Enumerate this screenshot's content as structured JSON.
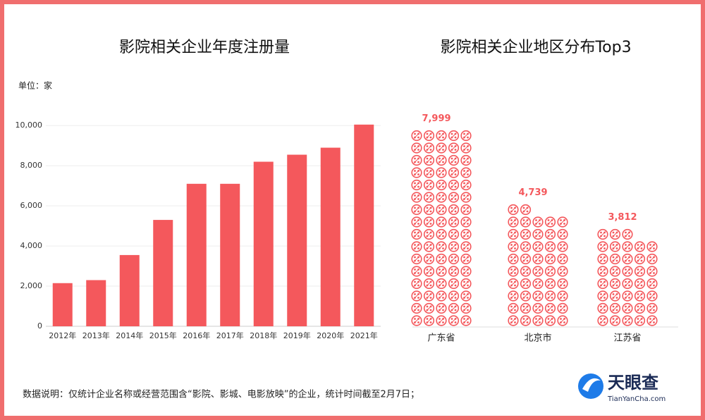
{
  "unit_label": "单位：家",
  "note": "数据说明：仅统计企业名称或经营范围含“影院、影城、电影放映”的企业，统计时间截至2月7日；",
  "logo": {
    "name": "天眼查",
    "domain": "TianYanCha.com"
  },
  "chart_data": [
    {
      "type": "bar",
      "title": "影院相关企业年度注册量",
      "categories": [
        "2012年",
        "2013年",
        "2014年",
        "2015年",
        "2016年",
        "2017年",
        "2018年",
        "2019年",
        "2020年",
        "2021年"
      ],
      "values": [
        2150,
        2300,
        3550,
        5300,
        7100,
        7100,
        8200,
        8550,
        8900,
        10050
      ],
      "color": "#f4585c",
      "ylim": [
        0,
        10500
      ],
      "yticks": [
        0,
        {
          "value": 2000,
          "label": "2,000"
        },
        {
          "value": 4000,
          "label": "4,000"
        },
        {
          "value": 6000,
          "label": "6,000"
        },
        {
          "value": 8000,
          "label": "8,000"
        },
        {
          "value": 10000,
          "label": "10,000"
        }
      ],
      "grid": true
    },
    {
      "type": "pictogram",
      "title": "影院相关企业地区分布Top3",
      "categories": [
        "广东省",
        "北京市",
        "江苏省"
      ],
      "values": [
        7999,
        4739,
        3812
      ],
      "value_labels": [
        "7,999",
        "4,739",
        "3,812"
      ],
      "color": "#f4585c"
    }
  ]
}
